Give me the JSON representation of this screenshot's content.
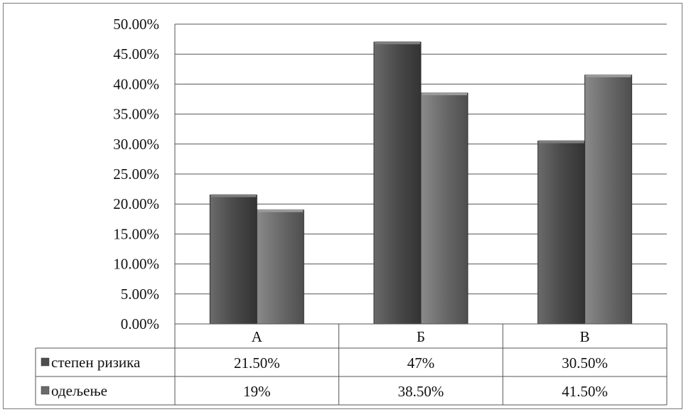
{
  "chart_data": {
    "type": "bar",
    "categories": [
      "А",
      "Б",
      "В"
    ],
    "series": [
      {
        "name": "степен ризика",
        "values": [
          21.5,
          47,
          30.5
        ],
        "labels": [
          "21.50%",
          "47%",
          "30.50%"
        ],
        "color": "#4d4d4d"
      },
      {
        "name": "одељење",
        "values": [
          19,
          38.5,
          41.5
        ],
        "labels": [
          "19%",
          "38.50%",
          "41.50%"
        ],
        "color": "#6a6a6a"
      }
    ],
    "yticks": [
      "0.00%",
      "5.00%",
      "10.00%",
      "15.00%",
      "20.00%",
      "25.00%",
      "30.00%",
      "35.00%",
      "40.00%",
      "45.00%",
      "50.00%"
    ],
    "ylim": [
      0,
      50
    ],
    "grid": true,
    "legend": "data-table",
    "title": "",
    "xlabel": "",
    "ylabel": ""
  }
}
